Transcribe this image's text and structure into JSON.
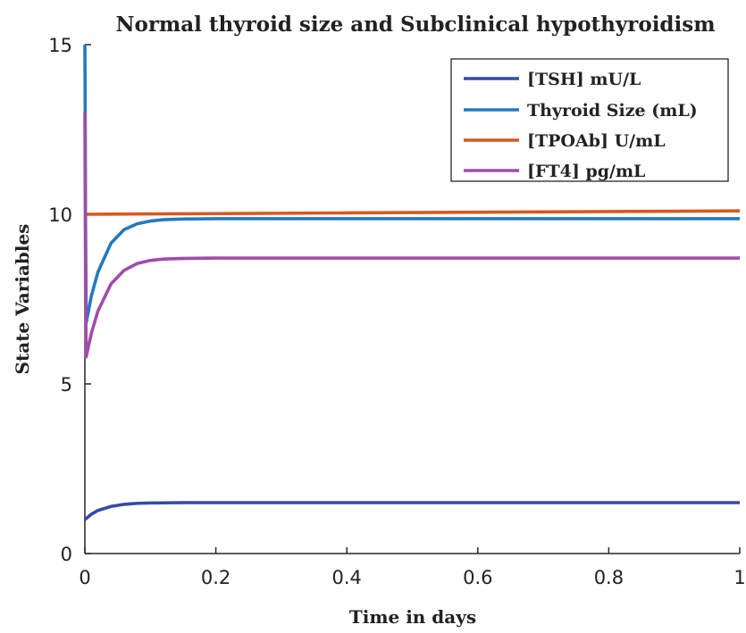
{
  "chart_data": {
    "type": "line",
    "title": "Normal thyroid size and Subclinical hypothyroidism",
    "xlabel": "Time in days",
    "ylabel": "State Variables",
    "xlim": [
      0,
      1
    ],
    "ylim": [
      0,
      15
    ],
    "xticks": [
      "0",
      "0.2",
      "0.4",
      "0.6",
      "0.8",
      "1"
    ],
    "yticks": [
      "0",
      "5",
      "10",
      "15"
    ],
    "grid": false,
    "legend_position": "top-right",
    "series": [
      {
        "name": "[TSH] mU/L",
        "color": "#3649a8",
        "x": [
          0,
          0.01,
          0.02,
          0.04,
          0.06,
          0.08,
          0.1,
          0.15,
          0.2,
          0.4,
          0.6,
          0.8,
          1.0
        ],
        "y": [
          1.0,
          1.16,
          1.27,
          1.39,
          1.45,
          1.48,
          1.49,
          1.5,
          1.5,
          1.5,
          1.5,
          1.5,
          1.5
        ]
      },
      {
        "name": "Thyroid Size (mL)",
        "color": "#2479bd",
        "x": [
          0,
          0.0005,
          0.001,
          0.002,
          0.01,
          0.02,
          0.04,
          0.06,
          0.08,
          0.1,
          0.12,
          0.15,
          0.2,
          0.4,
          0.6,
          0.8,
          1.0
        ],
        "y": [
          15.0,
          13.0,
          10.0,
          6.8,
          7.6,
          8.3,
          9.15,
          9.55,
          9.72,
          9.8,
          9.84,
          9.86,
          9.87,
          9.87,
          9.87,
          9.87,
          9.87
        ]
      },
      {
        "name": "[TPOAb] U/mL",
        "color": "#d9581f",
        "x": [
          0,
          0.2,
          0.4,
          0.6,
          0.8,
          1.0
        ],
        "y": [
          10.0,
          10.02,
          10.04,
          10.06,
          10.08,
          10.1
        ]
      },
      {
        "name": "[FT4] pg/mL",
        "color": "#a14ca8",
        "x": [
          0,
          0.0005,
          0.001,
          0.002,
          0.01,
          0.02,
          0.04,
          0.06,
          0.08,
          0.1,
          0.12,
          0.15,
          0.2,
          0.4,
          0.6,
          0.8,
          1.0
        ],
        "y": [
          13.0,
          10.5,
          8.0,
          5.8,
          6.5,
          7.15,
          7.95,
          8.35,
          8.55,
          8.64,
          8.68,
          8.7,
          8.71,
          8.71,
          8.71,
          8.71,
          8.71
        ]
      }
    ]
  }
}
